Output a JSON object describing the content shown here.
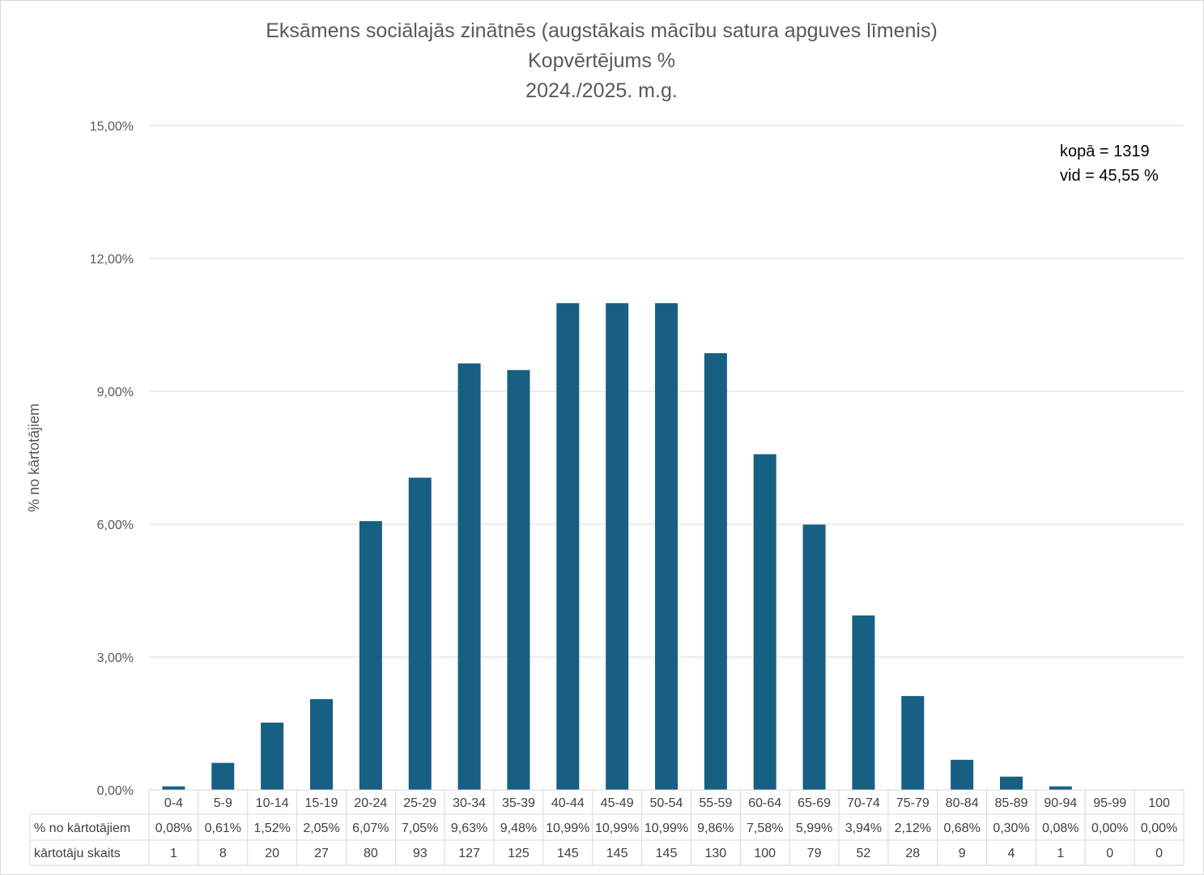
{
  "chart_data": {
    "type": "bar",
    "title_lines": [
      "Eksāmens sociālajās zinātnēs (augstākais mācību satura apguves līmenis)",
      "Kopvērtējums %",
      "2024./2025. m.g."
    ],
    "xlabel": "",
    "ylabel": "% no kārtotājiem",
    "ylim": [
      0,
      15
    ],
    "yticks": [
      "0,00%",
      "3,00%",
      "6,00%",
      "9,00%",
      "12,00%",
      "15,00%"
    ],
    "grid": true,
    "bar_color": "#175f83",
    "categories": [
      "0-4",
      "5-9",
      "10-14",
      "15-19",
      "20-24",
      "25-29",
      "30-34",
      "35-39",
      "40-44",
      "45-49",
      "50-54",
      "55-59",
      "60-64",
      "65-69",
      "70-74",
      "75-79",
      "80-84",
      "85-89",
      "90-94",
      "95-99",
      "100"
    ],
    "values": [
      0.08,
      0.61,
      1.52,
      2.05,
      6.07,
      7.05,
      9.63,
      9.48,
      10.99,
      10.99,
      10.99,
      9.86,
      7.58,
      5.99,
      3.94,
      2.12,
      0.68,
      0.3,
      0.08,
      0.0,
      0.0
    ],
    "table": {
      "row_labels": [
        "% no kārtotājiem",
        "kārtotāju skaits"
      ],
      "percent_labels": [
        "0,08%",
        "0,61%",
        "1,52%",
        "2,05%",
        "6,07%",
        "7,05%",
        "9,63%",
        "9,48%",
        "10,99%",
        "10,99%",
        "10,99%",
        "9,86%",
        "7,58%",
        "5,99%",
        "3,94%",
        "2,12%",
        "0,68%",
        "0,30%",
        "0,08%",
        "0,00%",
        "0,00%"
      ],
      "counts": [
        "1",
        "8",
        "20",
        "27",
        "80",
        "93",
        "127",
        "125",
        "145",
        "145",
        "145",
        "130",
        "100",
        "79",
        "52",
        "28",
        "9",
        "4",
        "1",
        "0",
        "0"
      ]
    },
    "annotations": [
      "kopā = 1319",
      "vid = 45,55 %"
    ],
    "legend": "none"
  }
}
